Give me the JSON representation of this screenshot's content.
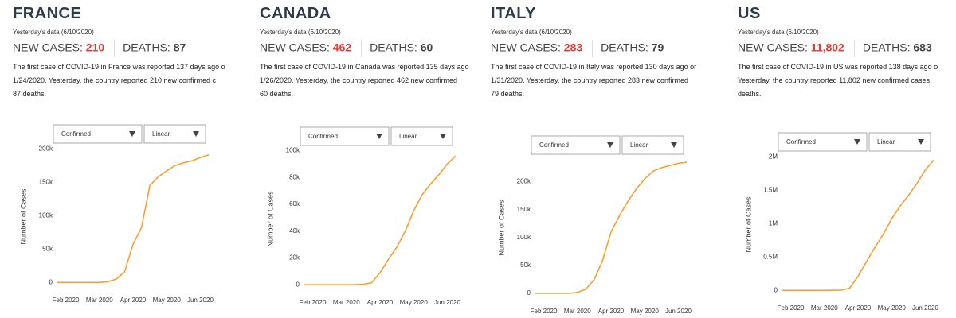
{
  "panels": [
    {
      "title": "FRANCE",
      "subtitle": "Yesterday's data (6/10/2020)",
      "new_cases_label": "NEW CASES:",
      "new_cases": "210",
      "deaths_label": "DEATHS:",
      "deaths": "87",
      "description": [
        "The first case of COVID-19 in France was reported 137 days ago o",
        "1/24/2020. Yesterday, the country reported 210 new confirmed c",
        "87 deaths."
      ],
      "dropdowns": [
        "Confirmed",
        "Linear"
      ]
    },
    {
      "title": "CANADA",
      "subtitle": "Yesterday's data (6/10/2020)",
      "new_cases_label": "NEW CASES:",
      "new_cases": "462",
      "deaths_label": "DEATHS:",
      "deaths": "60",
      "description": [
        "The first case of COVID-19 in Canada was reported 135 days ago",
        "1/26/2020. Yesterday, the country reported 462 new confirmed",
        "60 deaths."
      ],
      "dropdowns": [
        "Confirmed",
        "Linear"
      ]
    },
    {
      "title": "ITALY",
      "subtitle": "Yesterday's data (6/10/2020)",
      "new_cases_label": "NEW CASES:",
      "new_cases": "283",
      "deaths_label": "DEATHS:",
      "deaths": "79",
      "description": [
        "The first case of COVID-19 in Italy was reported 130 days ago or",
        "1/31/2020. Yesterday, the country reported 283 new confirmed",
        "79 deaths."
      ],
      "dropdowns": [
        "Confirmed",
        "Linear"
      ]
    },
    {
      "title": "US",
      "subtitle": "Yesterday's data (6/10/2020)",
      "new_cases_label": "NEW CASES:",
      "new_cases": "11,802",
      "deaths_label": "DEATHS:",
      "deaths": "683",
      "description": [
        "The first case of COVID-19 in US was reported 138 days ago o",
        "Yesterday, the country reported 11,802 new confirmed cases",
        "deaths."
      ],
      "dropdowns": [
        "Confirmed",
        "Linear"
      ]
    }
  ],
  "chart_data": [
    {
      "type": "line",
      "y_label": "Number of Cases",
      "color": "#f5a030",
      "categories": [
        null,
        "Feb 2020",
        null,
        null,
        null,
        "Mar 2020",
        null,
        null,
        null,
        "Apr 2020",
        null,
        null,
        null,
        "May 2020",
        null,
        null,
        null,
        "Jun 2020",
        null
      ],
      "values": [
        0,
        0,
        0,
        0,
        0,
        100,
        1000,
        5000,
        16000,
        57000,
        82000,
        145000,
        158000,
        167000,
        175000,
        179000,
        182000,
        187000,
        191000
      ],
      "ylim": [
        -8000,
        205000
      ],
      "yticks": [
        0,
        {
          "value": 50000,
          "label": "50k"
        },
        {
          "value": 100000,
          "label": "100k"
        },
        {
          "value": 150000,
          "label": "150k"
        },
        {
          "value": 200000,
          "label": "200k"
        }
      ]
    },
    {
      "type": "line",
      "y_label": "Number of Cases",
      "color": "#f5a030",
      "categories": [
        null,
        "Feb 2020",
        null,
        null,
        null,
        "Mar 2020",
        null,
        null,
        null,
        "Apr 2020",
        null,
        null,
        null,
        "May 2020",
        null,
        null,
        null,
        "Jun 2020",
        null
      ],
      "values": [
        0,
        0,
        0,
        0,
        0,
        0,
        60,
        300,
        1500,
        9000,
        19000,
        28000,
        40000,
        55000,
        67000,
        75000,
        82000,
        90000,
        96000
      ],
      "ylim": [
        -4000,
        102000
      ],
      "yticks": [
        0,
        {
          "value": 20000,
          "label": "20k"
        },
        {
          "value": 40000,
          "label": "40k"
        },
        {
          "value": 60000,
          "label": "60k"
        },
        {
          "value": 80000,
          "label": "80k"
        },
        {
          "value": 100000,
          "label": "100k"
        }
      ]
    },
    {
      "type": "line",
      "y_label": "Number of Cases",
      "color": "#f5a030",
      "categories": [
        null,
        "Feb 2020",
        null,
        null,
        null,
        "Mar 2020",
        null,
        null,
        null,
        "Apr 2020",
        null,
        null,
        null,
        "May 2020",
        null,
        null,
        null,
        "Jun 2020",
        null
      ],
      "values": [
        0,
        0,
        0,
        0,
        0,
        1700,
        7400,
        24700,
        59000,
        110000,
        139000,
        165000,
        187000,
        205000,
        219000,
        225000,
        229000,
        233000,
        235000
      ],
      "ylim": [
        -10000,
        245000
      ],
      "yticks": [
        0,
        {
          "value": 50000,
          "label": "50k"
        },
        {
          "value": 100000,
          "label": "100k"
        },
        {
          "value": 150000,
          "label": "150k"
        },
        {
          "value": 200000,
          "label": "200k"
        }
      ]
    },
    {
      "type": "line",
      "y_label": "Number of Cases",
      "color": "#f5a030",
      "categories": [
        null,
        "Feb 2020",
        null,
        null,
        null,
        "Mar 2020",
        null,
        null,
        null,
        "Apr 2020",
        null,
        null,
        null,
        "May 2020",
        null,
        null,
        null,
        "Jun 2020",
        null
      ],
      "values": [
        0,
        0,
        0,
        0,
        0,
        50,
        500,
        3500,
        33000,
        210000,
        430000,
        640000,
        840000,
        1070000,
        1260000,
        1420000,
        1600000,
        1800000,
        1950000
      ],
      "ylim": [
        -80000,
        2050000
      ],
      "yticks": [
        0,
        {
          "value": 500000,
          "label": "0.5M"
        },
        {
          "value": 1000000,
          "label": "1M"
        },
        {
          "value": 1500000,
          "label": "1.5M"
        },
        {
          "value": 2000000,
          "label": "2M"
        }
      ]
    }
  ]
}
